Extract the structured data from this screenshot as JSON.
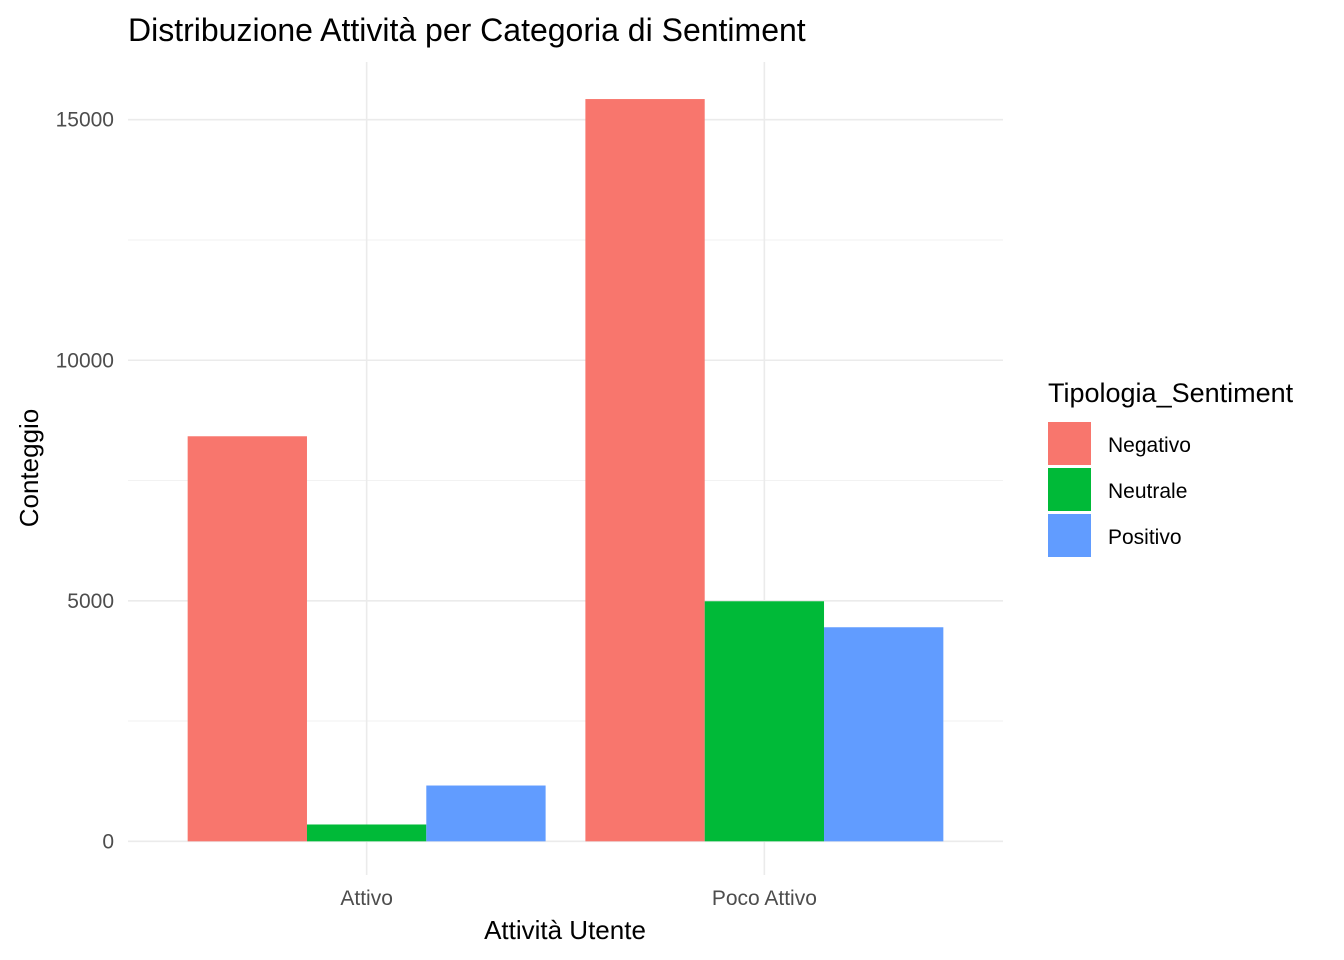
{
  "chart_data": {
    "type": "bar",
    "title": "Distribuzione Attività per Categoria di Sentiment",
    "xlabel": "Attività Utente",
    "ylabel": "Conteggio",
    "categories": [
      "Attivo",
      "Poco Attivo"
    ],
    "series": [
      {
        "name": "Negativo",
        "color": "#F8766D",
        "values": [
          8420,
          15430
        ]
      },
      {
        "name": "Neutrale",
        "color": "#00BA38",
        "values": [
          350,
          4990
        ]
      },
      {
        "name": "Positivo",
        "color": "#619CFF",
        "values": [
          1160,
          4450
        ]
      }
    ],
    "ylim": [
      -700,
      16200
    ],
    "yticks": [
      0,
      5000,
      10000,
      15000
    ],
    "ytick_labels": [
      "0",
      "5000",
      "10000",
      "15000"
    ],
    "grid": true,
    "legend": {
      "title": "Tipologia_Sentiment",
      "position": "right"
    }
  }
}
